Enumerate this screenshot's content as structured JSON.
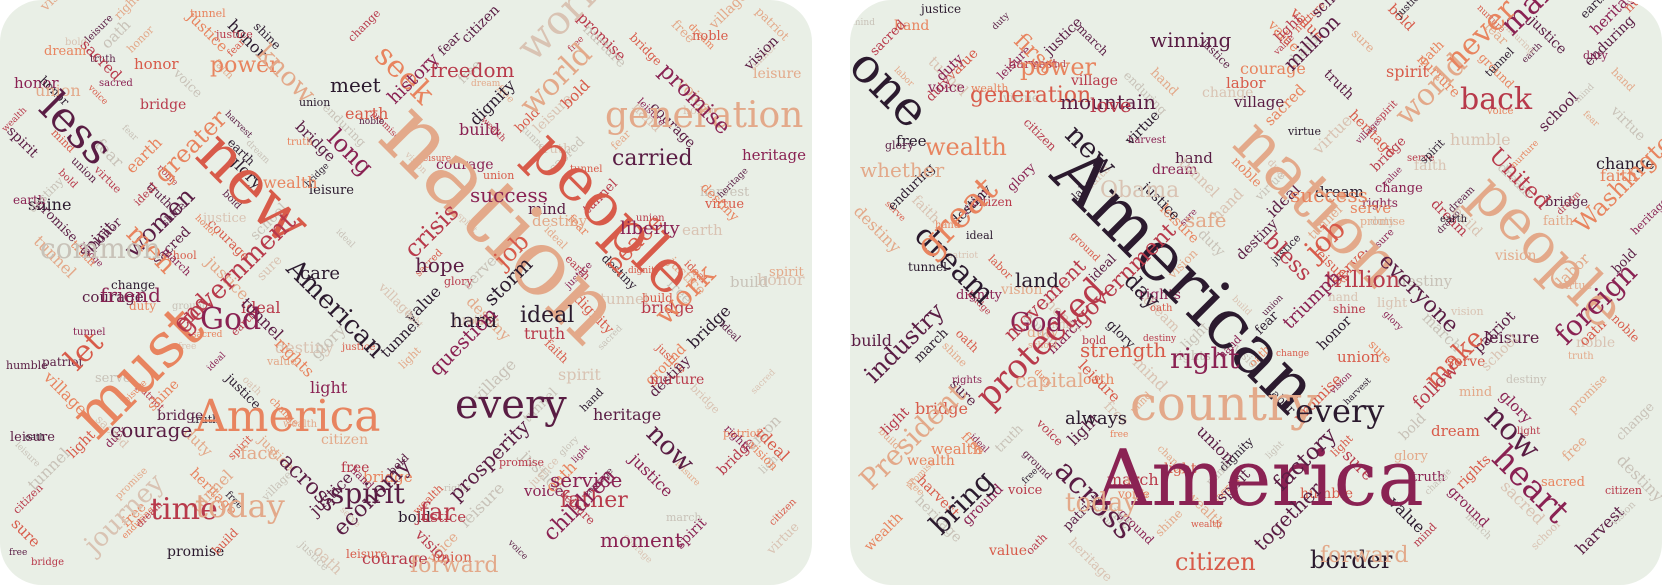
{
  "palette": {
    "panel_background": "#e9efe6",
    "word_colors": [
      "#2b1a2e",
      "#5a1d44",
      "#8a2253",
      "#b83a4b",
      "#d85b4a",
      "#e8845f",
      "#e3a98a",
      "#d9c3b3",
      "#c8c2b8"
    ]
  },
  "panels": [
    {
      "name": "left-word-cloud",
      "words": [
        [
          "nation",
          6
        ],
        [
          "new",
          4
        ],
        [
          "people",
          4
        ],
        [
          "America",
          5
        ],
        [
          "generation",
          6
        ],
        [
          "must",
          5
        ],
        [
          "every",
          1
        ],
        [
          "time",
          3
        ],
        [
          "less",
          1
        ],
        [
          "world",
          7
        ],
        [
          "government",
          3
        ],
        [
          "seek",
          5
        ],
        [
          "crisis",
          3
        ],
        [
          "women",
          1
        ],
        [
          "spirit",
          1
        ],
        [
          "today",
          6
        ],
        [
          "work",
          5
        ],
        [
          "God",
          2
        ],
        [
          "men",
          5
        ],
        [
          "power",
          5
        ],
        [
          "know",
          6
        ],
        [
          "greater",
          5
        ],
        [
          "friend",
          2
        ],
        [
          "job",
          4
        ],
        [
          "hope",
          1
        ],
        [
          "meet",
          0
        ],
        [
          "long",
          2
        ],
        [
          "American",
          0
        ],
        [
          "care",
          0
        ],
        [
          "hard",
          0
        ],
        [
          "ideal",
          0
        ],
        [
          "storm",
          0
        ],
        [
          "peace",
          4
        ],
        [
          "father",
          3
        ],
        [
          "far",
          3
        ],
        [
          "moment",
          2
        ],
        [
          "prosperity",
          1
        ],
        [
          "across",
          1
        ],
        [
          "economy",
          1
        ],
        [
          "now",
          1
        ],
        [
          "children",
          2
        ],
        [
          "common",
          8
        ],
        [
          "question",
          2
        ],
        [
          "let",
          4
        ],
        [
          "end",
          3
        ],
        [
          "face",
          6
        ],
        [
          "courage",
          1
        ],
        [
          "journey",
          7
        ],
        [
          "service",
          2
        ],
        [
          "freedom",
          3
        ],
        [
          "history",
          2
        ],
        [
          "forward",
          6
        ],
        [
          "world",
          6
        ],
        [
          "liberty",
          2
        ],
        [
          "carried",
          1
        ],
        [
          "promise",
          2
        ],
        [
          "success",
          2
        ]
      ]
    },
    {
      "name": "right-word-cloud",
      "words": [
        [
          "American",
          0
        ],
        [
          "America",
          2
        ],
        [
          "nation",
          6
        ],
        [
          "country",
          6
        ],
        [
          "people",
          6
        ],
        [
          "one",
          0
        ],
        [
          "back",
          3
        ],
        [
          "many",
          2
        ],
        [
          "power",
          5
        ],
        [
          "dream",
          0
        ],
        [
          "right",
          2
        ],
        [
          "great",
          5
        ],
        [
          "protected",
          3
        ],
        [
          "every",
          0
        ],
        [
          "heart",
          2
        ],
        [
          "now",
          1
        ],
        [
          "across",
          1
        ],
        [
          "job",
          4
        ],
        [
          "world",
          6
        ],
        [
          "President",
          6
        ],
        [
          "citizen",
          4
        ],
        [
          "today",
          6
        ],
        [
          "industry",
          1
        ],
        [
          "new",
          0
        ],
        [
          "God",
          2
        ],
        [
          "government",
          3
        ],
        [
          "wealth",
          5
        ],
        [
          "trillion",
          3
        ],
        [
          "everyone",
          1
        ],
        [
          "make",
          4
        ],
        [
          "foreign",
          2
        ],
        [
          "bring",
          0
        ],
        [
          "border",
          0
        ],
        [
          "day",
          0
        ],
        [
          "Obama",
          7
        ],
        [
          "never",
          5
        ],
        [
          "generation",
          4
        ],
        [
          "whether",
          6
        ],
        [
          "strength",
          4
        ],
        [
          "movement",
          3
        ],
        [
          "land",
          0
        ],
        [
          "factory",
          1
        ],
        [
          "mountain",
          1
        ],
        [
          "winning",
          1
        ],
        [
          "million",
          1
        ],
        [
          "together",
          1
        ],
        [
          "success",
          5
        ],
        [
          "triumph",
          2
        ],
        [
          "safe",
          6
        ],
        [
          "capital",
          6
        ],
        [
          "bless",
          3
        ],
        [
          "first",
          5
        ],
        [
          "love",
          3
        ],
        [
          "follow",
          3
        ],
        [
          "forward",
          6
        ],
        [
          "United",
          3
        ],
        [
          "Washington",
          5
        ],
        [
          "always",
          0
        ]
      ]
    }
  ]
}
